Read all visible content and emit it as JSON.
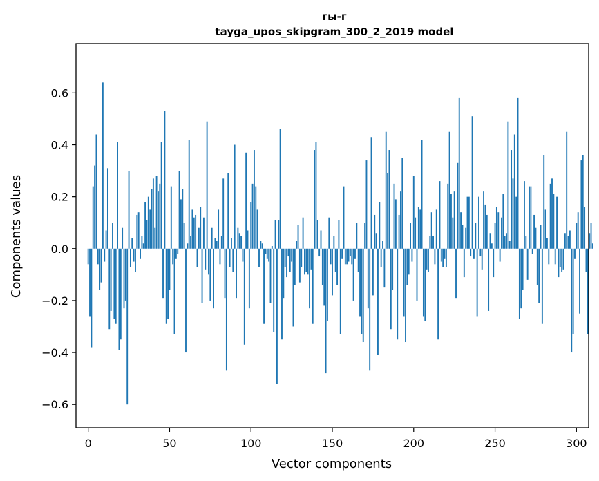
{
  "chart_data": {
    "type": "bar",
    "title": "гы-г",
    "subtitle": "tayga_upos_skipgram_300_2_2019 model",
    "xlabel": "Vector components",
    "ylabel": "Components values",
    "xlim": [
      -7.5,
      307.5
    ],
    "ylim": [
      -0.69,
      0.79
    ],
    "xticks": [
      0,
      50,
      100,
      150,
      200,
      250,
      300
    ],
    "yticks": [
      -0.6,
      -0.4,
      -0.2,
      0.0,
      0.2,
      0.4,
      0.6
    ],
    "xtick_labels": [
      "0",
      "50",
      "100",
      "150",
      "200",
      "250",
      "300"
    ],
    "ytick_labels": [
      "−0.6",
      "−0.4",
      "−0.2",
      "0.0",
      "0.2",
      "0.4",
      "0.6"
    ],
    "bar_color": "#1f77b4",
    "bar_width": 0.8,
    "values": [
      -0.06,
      -0.26,
      -0.38,
      0.24,
      0.32,
      0.44,
      -0.06,
      -0.16,
      -0.13,
      0.64,
      -0.05,
      0.07,
      0.31,
      -0.31,
      -0.24,
      0.1,
      -0.27,
      -0.29,
      0.41,
      -0.39,
      -0.35,
      0.08,
      -0.23,
      -0.2,
      -0.6,
      0.3,
      -0.07,
      0.04,
      -0.05,
      -0.09,
      0.13,
      0.14,
      -0.04,
      0.05,
      0.02,
      0.18,
      0.11,
      0.2,
      0.15,
      0.23,
      0.27,
      0.08,
      0.28,
      0.22,
      0.25,
      0.41,
      -0.19,
      0.53,
      -0.29,
      -0.27,
      -0.16,
      0.24,
      -0.06,
      -0.33,
      -0.04,
      -0.02,
      0.3,
      0.19,
      0.23,
      0.1,
      -0.4,
      0.02,
      0.42,
      0.05,
      0.15,
      0.12,
      0.13,
      -0.07,
      0.08,
      0.16,
      -0.21,
      0.12,
      -0.08,
      0.49,
      -0.1,
      -0.2,
      0.08,
      -0.23,
      0.04,
      0.03,
      0.15,
      -0.06,
      0.05,
      0.27,
      -0.19,
      -0.47,
      0.29,
      -0.07,
      0.04,
      -0.09,
      0.4,
      -0.19,
      0.08,
      0.06,
      0.05,
      -0.05,
      -0.37,
      0.37,
      0.07,
      -0.23,
      0.18,
      0.25,
      0.38,
      0.24,
      0.15,
      -0.07,
      0.03,
      0.02,
      -0.29,
      -0.02,
      -0.04,
      -0.05,
      -0.21,
      0.01,
      -0.32,
      0.11,
      -0.52,
      0.11,
      0.46,
      -0.35,
      -0.19,
      -0.07,
      -0.11,
      -0.03,
      -0.09,
      -0.05,
      -0.3,
      -0.14,
      0.03,
      0.09,
      -0.13,
      -0.07,
      0.12,
      -0.1,
      -0.09,
      -0.1,
      -0.23,
      -0.08,
      -0.29,
      0.38,
      0.41,
      0.11,
      -0.03,
      0.07,
      -0.14,
      -0.22,
      -0.48,
      -0.28,
      0.12,
      -0.06,
      -0.18,
      0.05,
      -0.09,
      -0.14,
      0.11,
      -0.33,
      -0.04,
      0.24,
      -0.06,
      -0.06,
      -0.05,
      -0.03,
      -0.06,
      -0.2,
      -0.04,
      0.1,
      -0.09,
      -0.26,
      -0.33,
      -0.36,
      0.1,
      0.34,
      -0.23,
      -0.47,
      0.43,
      -0.18,
      0.13,
      0.06,
      -0.41,
      0.18,
      -0.07,
      0.03,
      -0.15,
      0.45,
      0.29,
      0.38,
      -0.31,
      -0.16,
      0.25,
      0.19,
      -0.35,
      0.13,
      0.22,
      0.35,
      -0.26,
      -0.36,
      -0.14,
      -0.1,
      0.1,
      -0.05,
      0.28,
      0.12,
      -0.2,
      0.16,
      0.15,
      0.42,
      -0.26,
      -0.28,
      -0.08,
      -0.09,
      0.05,
      0.14,
      0.05,
      -0.06,
      0.15,
      -0.35,
      0.26,
      -0.05,
      -0.07,
      -0.04,
      -0.07,
      0.25,
      0.45,
      0.21,
      0.12,
      0.22,
      -0.19,
      0.33,
      0.58,
      0.14,
      0.09,
      -0.11,
      0.08,
      0.2,
      0.2,
      -0.03,
      0.51,
      -0.04,
      0.1,
      -0.26,
      0.2,
      -0.03,
      -0.08,
      0.22,
      0.17,
      0.13,
      -0.24,
      0.06,
      0.02,
      -0.11,
      0.1,
      0.16,
      0.14,
      -0.05,
      0.12,
      0.21,
      0.05,
      0.06,
      0.49,
      0.03,
      0.38,
      0.27,
      0.44,
      0.2,
      0.58,
      -0.27,
      -0.23,
      -0.16,
      0.26,
      0.05,
      -0.12,
      0.24,
      0.24,
      -0.02,
      0.13,
      0.08,
      -0.14,
      -0.21,
      0.09,
      -0.29,
      0.36,
      0.15,
      0.04,
      -0.06,
      0.25,
      0.27,
      0.21,
      -0.06,
      0.2,
      -0.11,
      -0.07,
      -0.09,
      -0.08,
      0.06,
      0.45,
      0.05,
      0.07,
      -0.4,
      -0.33,
      -0.04,
      0.1,
      0.14,
      -0.25,
      0.34,
      0.36,
      0.16,
      -0.09,
      -0.33,
      0.06,
      0.1,
      0.02
    ]
  }
}
